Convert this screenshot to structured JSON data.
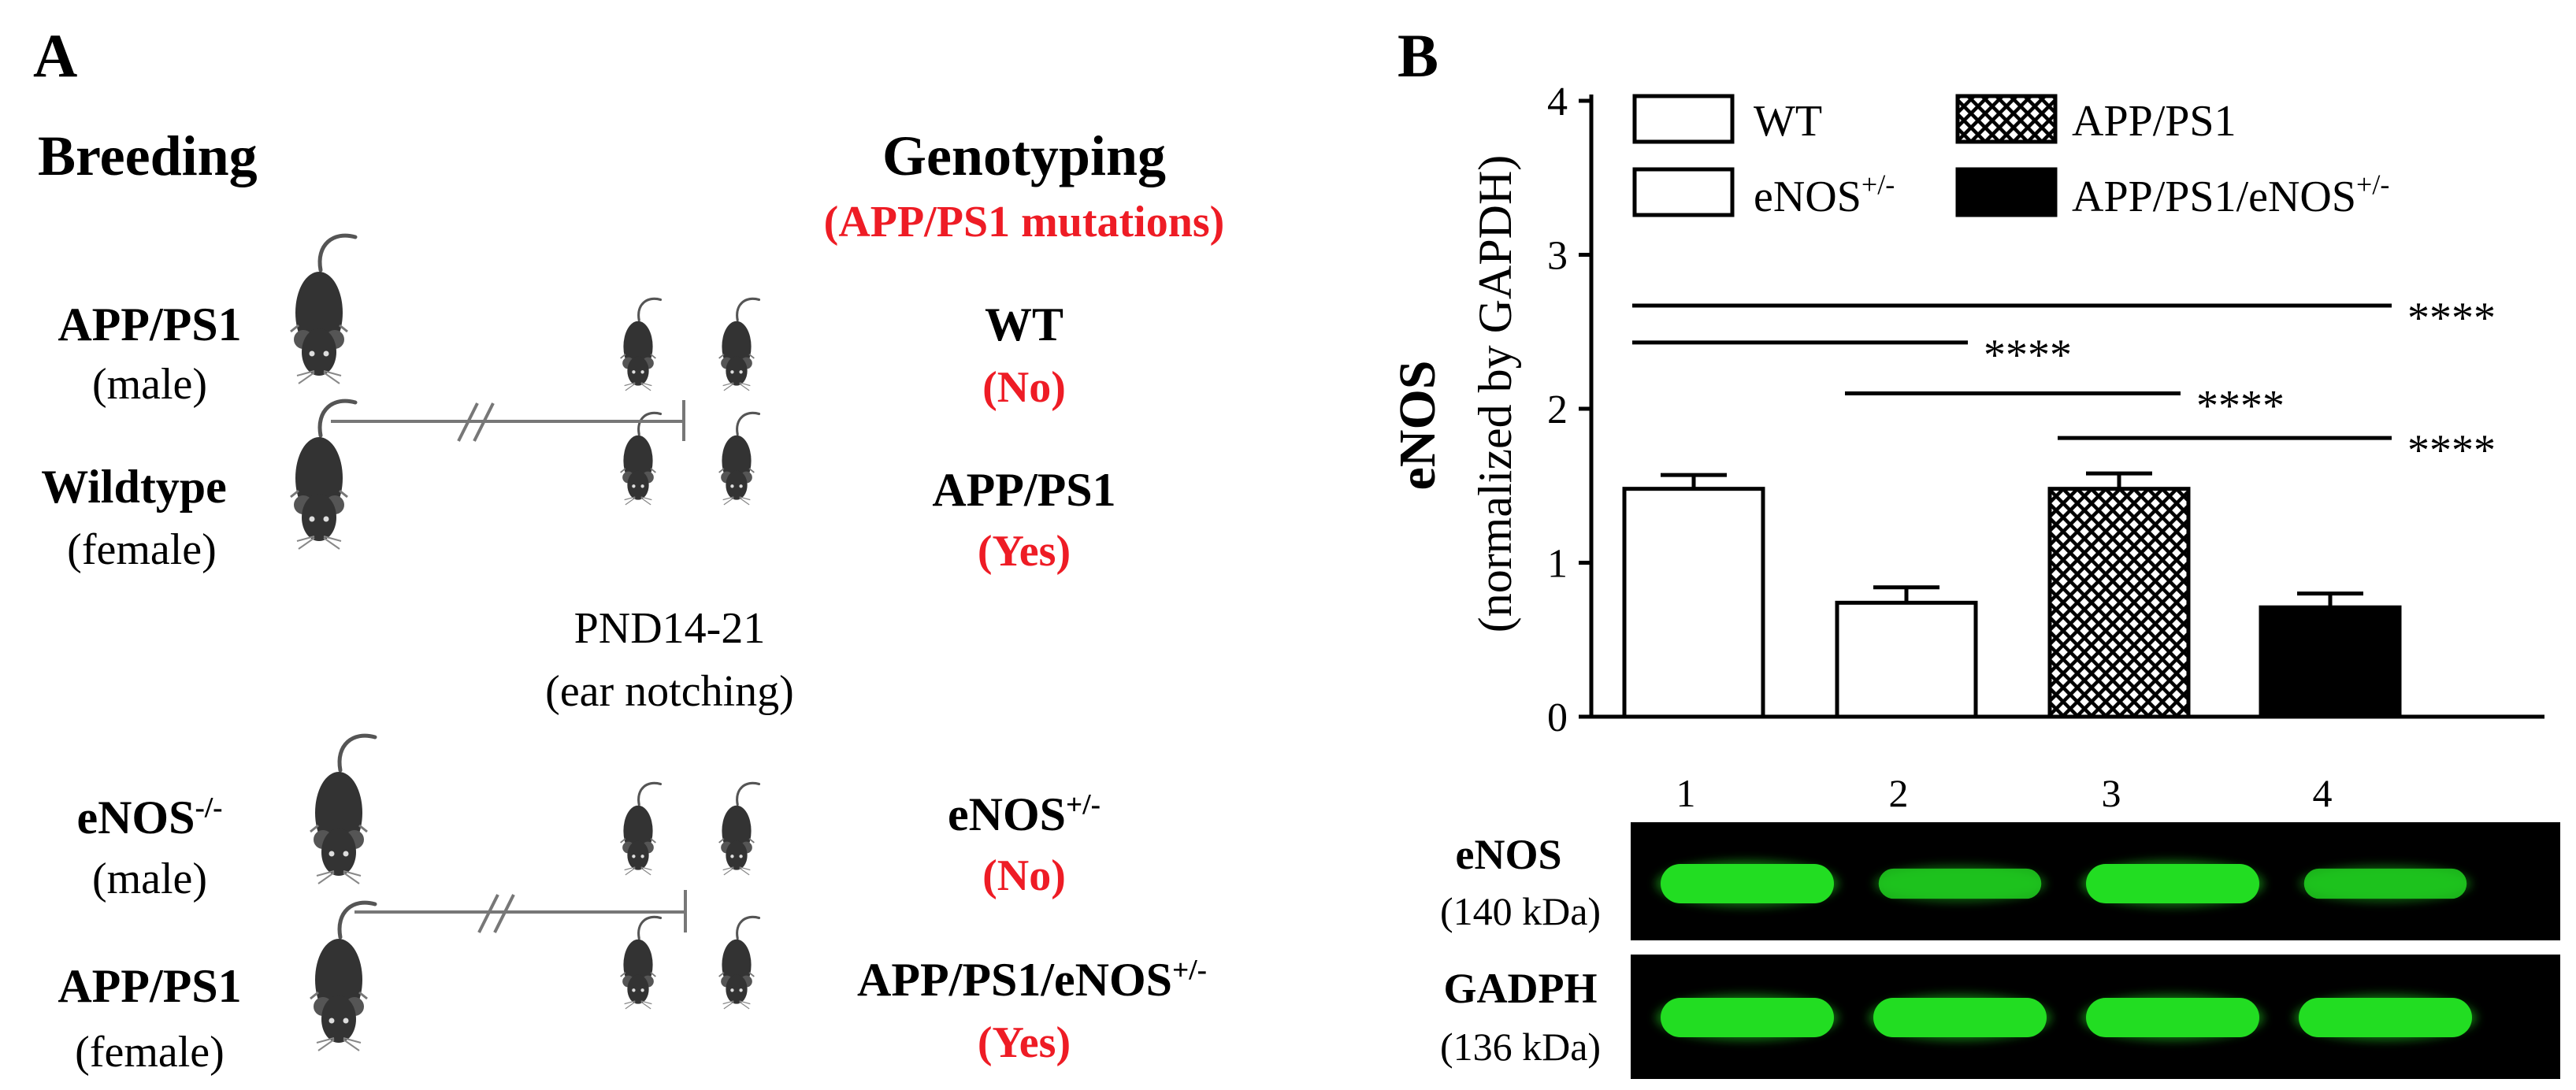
{
  "panelA": {
    "label": "A",
    "breeding_header": "Breeding",
    "genotyping_header": "Genotyping",
    "genotyping_subheader": "(APP/PS1 mutations)",
    "cross1": {
      "parent1_name": "APP/PS1",
      "parent1_sex": "(male)",
      "parent2_name": "Wildtype",
      "parent2_sex": "(female)",
      "outcome1_name": "WT",
      "outcome1_result": "(No)",
      "outcome2_name": "APP/PS1",
      "outcome2_result": "(Yes)"
    },
    "pnd_label": "PND14-21",
    "pnd_sub": "(ear notching)",
    "cross2": {
      "parent1_name": "eNOS",
      "parent1_sup": "-/-",
      "parent1_sex": "(male)",
      "parent2_name": "APP/PS1",
      "parent2_sex": "(female)",
      "outcome1_name": "eNOS",
      "outcome1_sup": "+/-",
      "outcome1_result": "(No)",
      "outcome2_name": "APP/PS1/eNOS",
      "outcome2_sup": "+/-",
      "outcome2_result": "(Yes)"
    },
    "icon": "mouse-icon"
  },
  "panelB": {
    "label": "B",
    "legend": {
      "wt": "WT",
      "enos": "eNOS",
      "enos_sup": "+/-",
      "app": "APP/PS1",
      "appenos": "APP/PS1/eNOS",
      "appenos_sup": "+/-"
    },
    "blot": {
      "lanes": [
        "1",
        "2",
        "3",
        "4"
      ],
      "row1_name": "eNOS",
      "row1_size": "(140 kDa)",
      "row2_name": "GADPH",
      "row2_size": "(136 kDa)",
      "band_color": "#22dd22",
      "background": "#000000",
      "row1_intensity": [
        1.0,
        0.55,
        1.0,
        0.55
      ],
      "row2_intensity": [
        1.0,
        1.0,
        1.0,
        1.0
      ]
    }
  },
  "chart_data": {
    "type": "bar",
    "categories": [
      "WT",
      "eNOS+/-",
      "APP/PS1",
      "APP/PS1/eNOS+/-"
    ],
    "values": [
      1.48,
      0.74,
      1.48,
      0.71
    ],
    "errors": [
      0.09,
      0.1,
      0.1,
      0.09
    ],
    "fills": [
      "open",
      "open",
      "crosshatch",
      "solid"
    ],
    "ylabel": "eNOS",
    "ylabel_sub": "(normalized by GAPDH)",
    "ylim": [
      0,
      4
    ],
    "yticks": [
      "0",
      "1",
      "2",
      "3",
      "4"
    ],
    "significance": [
      {
        "from": 0,
        "to": 3,
        "y": 2.67,
        "label": "****"
      },
      {
        "from": 0,
        "to": 1,
        "y": 2.43,
        "label": "****"
      },
      {
        "from": 1,
        "to": 2,
        "y": 2.1,
        "label": "****"
      },
      {
        "from": 2,
        "to": 3,
        "y": 1.81,
        "label": "****"
      }
    ],
    "grid": false,
    "legend_position": "top"
  }
}
